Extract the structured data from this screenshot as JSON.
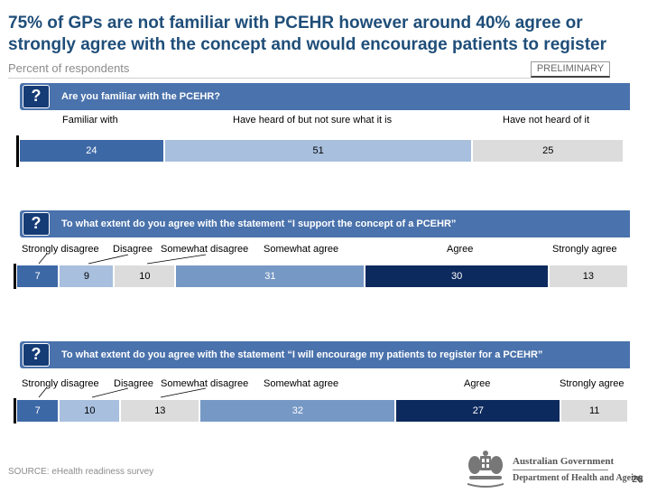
{
  "title": "75% of GPs are not familiar with PCEHR however around 40% agree or strongly agree with the concept and would encourage patients to register",
  "subtitle": "Percent of respondents",
  "badge": "PRELIMINARY",
  "question_icon": "?",
  "colors": {
    "banner": "#4a72ac",
    "bubble": "#163c76",
    "dark_navy": "#0d2a5e",
    "mid_blue": "#3d68a6",
    "blue": "#7698c5",
    "light_blue": "#a8bfde",
    "light_grey": "#dcdcdc"
  },
  "chart_data": [
    {
      "type": "bar",
      "orientation": "horizontal-stacked",
      "title": "Are you familiar with the PCEHR?",
      "categories": [
        "Familiar with",
        "Have heard of but not sure what it is",
        "Have not heard of it"
      ],
      "values": [
        24,
        51,
        25
      ],
      "colors": [
        "#3d68a6",
        "#a8bfde",
        "#dcdcdc"
      ],
      "text_colors": [
        "#ffffff",
        "#000000",
        "#000000"
      ]
    },
    {
      "type": "bar",
      "orientation": "horizontal-stacked",
      "title": "To what extent do you agree with the statement “I support the concept of a PCEHR”",
      "categories": [
        "Strongly disagree",
        "Disagree",
        "Somewhat disagree",
        "Somewhat agree",
        "Agree",
        "Strongly agree"
      ],
      "values": [
        7,
        9,
        10,
        31,
        30,
        13
      ],
      "colors": [
        "#3d68a6",
        "#a8bfde",
        "#dcdcdc",
        "#7698c5",
        "#0d2a5e",
        "#dcdcdc"
      ],
      "text_colors": [
        "#ffffff",
        "#000000",
        "#000000",
        "#ffffff",
        "#ffffff",
        "#000000"
      ]
    },
    {
      "type": "bar",
      "orientation": "horizontal-stacked",
      "title": "To what extent do you agree with the statement “I will encourage my patients to register for  a PCEHR”",
      "categories": [
        "Strongly disagree",
        "Disagree",
        "Somewhat disagree",
        "Somewhat agree",
        "Agree",
        "Strongly agree"
      ],
      "values": [
        7,
        10,
        13,
        32,
        27,
        11
      ],
      "colors": [
        "#3d68a6",
        "#a8bfde",
        "#dcdcdc",
        "#7698c5",
        "#0d2a5e",
        "#dcdcdc"
      ],
      "text_colors": [
        "#ffffff",
        "#000000",
        "#000000",
        "#ffffff",
        "#ffffff",
        "#000000"
      ]
    }
  ],
  "source": "SOURCE: eHealth readiness survey",
  "logo": {
    "line1": "Australian Government",
    "line2": "Department of Health and Ageing"
  },
  "page_number": "26"
}
